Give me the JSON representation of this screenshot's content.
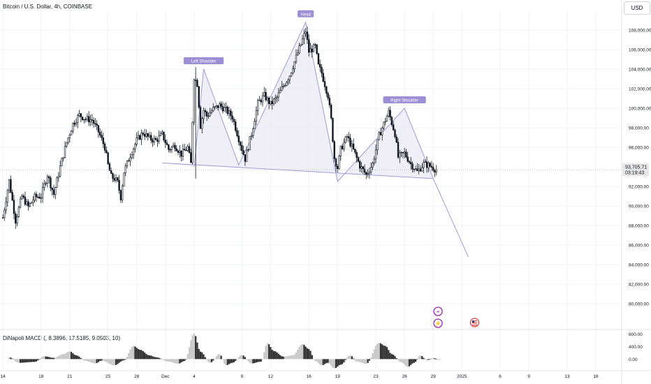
{
  "header": {
    "title": "Bitcoin / U.S. Dollar, 4h, COINBASE",
    "currency": "USD"
  },
  "price_readout": {
    "price": "93,705.71",
    "countdown": "03:19:43"
  },
  "colors": {
    "up": "#131722",
    "down": "#131722",
    "pattern_fill": "#e9e8f5",
    "pattern_line": "#9e9bd3",
    "label_bg": "#9c8fd6",
    "hist_light": "#c8c8c8",
    "hist_dark": "#303030"
  },
  "chart_data": {
    "type": "candlestick",
    "y_axis_ticks": [
      "108,000.00",
      "106,000.00",
      "104,000.00",
      "102,000.00",
      "100,000.00",
      "98,000.00",
      "96,000.00",
      "92,000.00",
      "90,000.00",
      "88,000.00",
      "86,000.00",
      "84,000.00",
      "82,000.00",
      "80,000.00"
    ],
    "y_range": [
      77500,
      110000
    ],
    "x_axis_ticks": [
      {
        "label": "14",
        "t": 0
      },
      {
        "label": "18",
        "t": 24
      },
      {
        "label": "21",
        "t": 42
      },
      {
        "label": "25",
        "t": 66
      },
      {
        "label": "28",
        "t": 84
      },
      {
        "label": "Dec",
        "t": 102
      },
      {
        "label": "4",
        "t": 120
      },
      {
        "label": "9",
        "t": 150
      },
      {
        "label": "12",
        "t": 168
      },
      {
        "label": "16",
        "t": 192
      },
      {
        "label": "19",
        "t": 210
      },
      {
        "label": "23",
        "t": 234
      },
      {
        "label": "26",
        "t": 252
      },
      {
        "label": "29",
        "t": 270
      },
      {
        "label": "2025",
        "t": 288
      },
      {
        "label": "6",
        "t": 312
      },
      {
        "label": "9",
        "t": 330
      },
      {
        "label": "13",
        "t": 354
      },
      {
        "label": "16",
        "t": 372
      }
    ],
    "x_unit": "4h bars from Nov 14",
    "close_path": [
      [
        0,
        88800
      ],
      [
        4,
        92600
      ],
      [
        8,
        88500
      ],
      [
        12,
        91000
      ],
      [
        16,
        89900
      ],
      [
        20,
        90900
      ],
      [
        24,
        91000
      ],
      [
        28,
        93200
      ],
      [
        32,
        91200
      ],
      [
        36,
        94000
      ],
      [
        40,
        96500
      ],
      [
        44,
        98400
      ],
      [
        48,
        99300
      ],
      [
        52,
        98900
      ],
      [
        56,
        98800
      ],
      [
        60,
        97600
      ],
      [
        64,
        96000
      ],
      [
        66,
        94200
      ],
      [
        68,
        93000
      ],
      [
        70,
        92800
      ],
      [
        72,
        92400
      ],
      [
        74,
        90900
      ],
      [
        76,
        93500
      ],
      [
        80,
        95200
      ],
      [
        84,
        96700
      ],
      [
        88,
        97500
      ],
      [
        92,
        96900
      ],
      [
        96,
        96700
      ],
      [
        100,
        97300
      ],
      [
        104,
        95800
      ],
      [
        108,
        96200
      ],
      [
        112,
        95300
      ],
      [
        116,
        96000
      ],
      [
        118,
        94300
      ],
      [
        120,
        103200
      ],
      [
        122,
        102500
      ],
      [
        124,
        98200
      ],
      [
        126,
        99800
      ],
      [
        128,
        99200
      ],
      [
        132,
        99900
      ],
      [
        136,
        100300
      ],
      [
        140,
        99800
      ],
      [
        144,
        99100
      ],
      [
        148,
        96900
      ],
      [
        152,
        94800
      ],
      [
        156,
        97400
      ],
      [
        160,
        100500
      ],
      [
        164,
        101300
      ],
      [
        168,
        100400
      ],
      [
        172,
        101100
      ],
      [
        176,
        102300
      ],
      [
        180,
        103400
      ],
      [
        184,
        105200
      ],
      [
        188,
        107000
      ],
      [
        190,
        107900
      ],
      [
        192,
        105800
      ],
      [
        196,
        106300
      ],
      [
        198,
        104300
      ],
      [
        200,
        103600
      ],
      [
        204,
        101300
      ],
      [
        206,
        98800
      ],
      [
        208,
        94900
      ],
      [
        210,
        93900
      ],
      [
        212,
        95800
      ],
      [
        216,
        97100
      ],
      [
        220,
        95700
      ],
      [
        224,
        94100
      ],
      [
        228,
        93200
      ],
      [
        232,
        94300
      ],
      [
        236,
        97200
      ],
      [
        240,
        98800
      ],
      [
        242,
        99600
      ],
      [
        246,
        97400
      ],
      [
        248,
        95000
      ],
      [
        252,
        95400
      ],
      [
        256,
        94300
      ],
      [
        260,
        93500
      ],
      [
        264,
        94300
      ],
      [
        268,
        94100
      ],
      [
        272,
        93705
      ]
    ],
    "annotations": [
      "Left Shoulder",
      "Head",
      "Right Shoulder"
    ],
    "projection_target": 84800,
    "indicator": {
      "name": "DiNapoli MACD",
      "params": "(, 8.3896, 17.5185, 9.0503, 10)",
      "y_axis_ticks": [
        "800.00",
        "400.00",
        "0.00"
      ],
      "y_range": [
        -350,
        900
      ],
      "peaks": [
        [
          4,
          60
        ],
        [
          10,
          -120
        ],
        [
          20,
          -90
        ],
        [
          26,
          90
        ],
        [
          32,
          40
        ],
        [
          38,
          160
        ],
        [
          42,
          250
        ],
        [
          46,
          120
        ],
        [
          52,
          -60
        ],
        [
          58,
          -140
        ],
        [
          62,
          -50
        ],
        [
          70,
          -200
        ],
        [
          76,
          -40
        ],
        [
          82,
          420
        ],
        [
          86,
          300
        ],
        [
          92,
          120
        ],
        [
          96,
          60
        ],
        [
          104,
          -80
        ],
        [
          110,
          -150
        ],
        [
          114,
          -60
        ],
        [
          120,
          820
        ],
        [
          124,
          240
        ],
        [
          130,
          -120
        ],
        [
          136,
          160
        ],
        [
          140,
          -200
        ],
        [
          144,
          -120
        ],
        [
          150,
          130
        ],
        [
          156,
          -140
        ],
        [
          162,
          -80
        ],
        [
          166,
          510
        ],
        [
          170,
          260
        ],
        [
          176,
          80
        ],
        [
          182,
          120
        ],
        [
          188,
          480
        ],
        [
          192,
          320
        ],
        [
          196,
          -60
        ],
        [
          200,
          -200
        ],
        [
          204,
          -120
        ],
        [
          208,
          -300
        ],
        [
          212,
          -180
        ],
        [
          218,
          120
        ],
        [
          222,
          -80
        ],
        [
          228,
          -150
        ],
        [
          236,
          520
        ],
        [
          240,
          420
        ],
        [
          244,
          160
        ],
        [
          250,
          -100
        ],
        [
          254,
          -250
        ],
        [
          258,
          -120
        ],
        [
          262,
          120
        ],
        [
          266,
          -40
        ],
        [
          270,
          40
        ],
        [
          274,
          -30
        ]
      ]
    }
  }
}
